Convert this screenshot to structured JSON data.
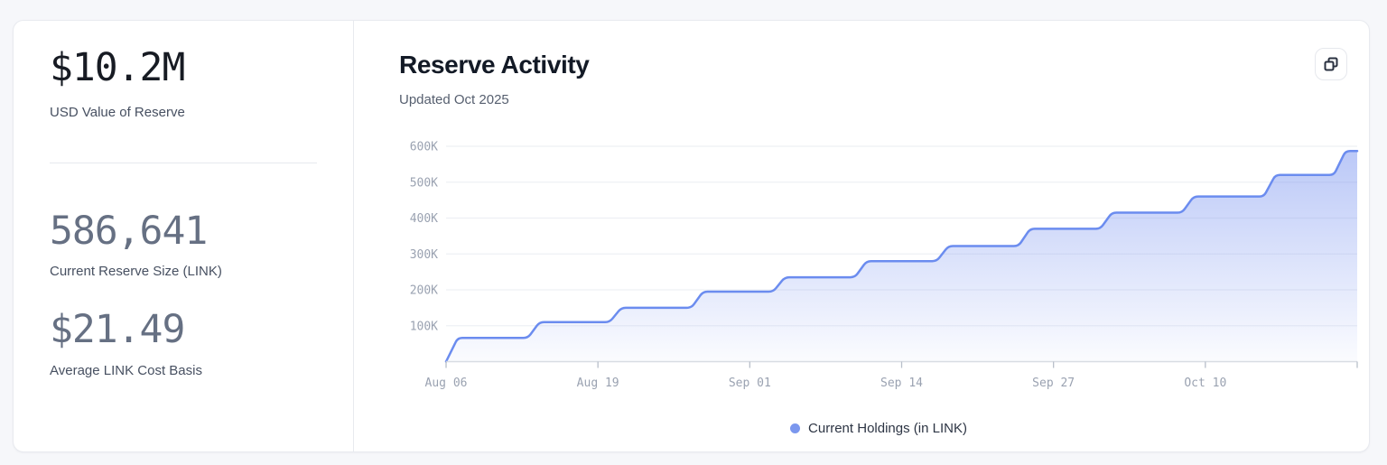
{
  "stats_panel": {
    "primary": {
      "value": "$10.2M",
      "label": "USD Value of Reserve"
    },
    "secondary": [
      {
        "value": "586,641",
        "label": "Current Reserve Size (LINK)"
      },
      {
        "value": "$21.49",
        "label": "Average LINK Cost Basis"
      }
    ]
  },
  "chart_panel": {
    "title": "Reserve Activity",
    "subtitle": "Updated Oct 2025",
    "copy_button_icon": "copy-icon",
    "legend": {
      "label": "Current Holdings (in LINK)",
      "dot_color": "#7b97ee"
    }
  },
  "chart_data": {
    "type": "area",
    "title": "Reserve Activity",
    "x_start_label": "Aug 06",
    "x_end_day": 78,
    "ylim": [
      0,
      600000
    ],
    "grid": "horizontal",
    "legend_position": "bottom-center",
    "series": [
      {
        "name": "Current Holdings (in LINK)",
        "points": [
          [
            0,
            0
          ],
          [
            1,
            66000
          ],
          [
            7,
            66000
          ],
          [
            8,
            110000
          ],
          [
            14,
            110000
          ],
          [
            15,
            150000
          ],
          [
            21,
            150000
          ],
          [
            22,
            195000
          ],
          [
            28,
            195000
          ],
          [
            29,
            235000
          ],
          [
            35,
            235000
          ],
          [
            36,
            280000
          ],
          [
            42,
            280000
          ],
          [
            43,
            322000
          ],
          [
            49,
            322000
          ],
          [
            50,
            370000
          ],
          [
            56,
            370000
          ],
          [
            57,
            415000
          ],
          [
            63,
            415000
          ],
          [
            64,
            460000
          ],
          [
            70,
            460000
          ],
          [
            71,
            520000
          ],
          [
            76,
            520000
          ],
          [
            77,
            586641
          ],
          [
            78,
            586641
          ]
        ]
      }
    ],
    "x_ticks": [
      {
        "day": 0,
        "label": "Aug 06"
      },
      {
        "day": 13,
        "label": "Aug 19"
      },
      {
        "day": 26,
        "label": "Sep 01"
      },
      {
        "day": 39,
        "label": "Sep 14"
      },
      {
        "day": 52,
        "label": "Sep 27"
      },
      {
        "day": 65,
        "label": "Oct 10"
      },
      {
        "day": 78,
        "label": ""
      }
    ],
    "y_ticks": [
      {
        "value": 100000,
        "label": "100K"
      },
      {
        "value": 200000,
        "label": "200K"
      },
      {
        "value": 300000,
        "label": "300K"
      },
      {
        "value": 400000,
        "label": "400K"
      },
      {
        "value": 500000,
        "label": "500K"
      },
      {
        "value": 600000,
        "label": "600K"
      }
    ],
    "colors": {
      "line": "#6b8cef",
      "area_top": "rgba(122,148,240,0.52)",
      "area_bottom": "rgba(122,148,240,0.03)",
      "gridline": "#eef0f4",
      "axis_line": "#d8dce3",
      "tick": "#b8bfca"
    }
  }
}
